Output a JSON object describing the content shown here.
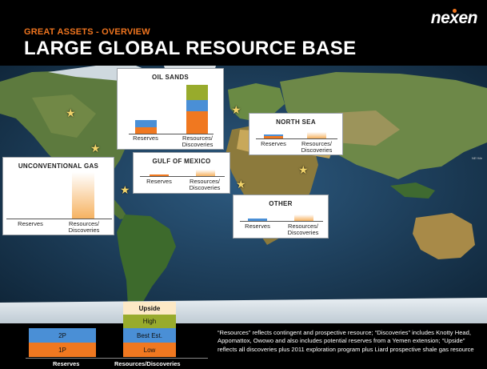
{
  "header": {
    "kicker": "GREAT ASSETS - OVERVIEW",
    "title": "LARGE GLOBAL RESOURCE BASE",
    "logo": "nexen"
  },
  "colors": {
    "accent": "#f0751f",
    "1p": "#f07820",
    "2p": "#4a8fd6",
    "high": "#98ab2c",
    "upside": "#fde9c6"
  },
  "regions": {
    "oil_sands": {
      "title": "OIL SANDS",
      "reserves_label": "Reserves",
      "resources_label": "Resources/\nDiscoveries"
    },
    "north_sea": {
      "title": "NORTH SEA",
      "reserves_label": "Reserves",
      "resources_label": "Resources/\nDiscoveries"
    },
    "unconventional_gas": {
      "title": "UNCONVENTIONAL GAS",
      "reserves_label": "Reserves",
      "resources_label": "Resources/\nDiscoveries"
    },
    "gulf_of_mexico": {
      "title": "GULF OF MEXICO",
      "reserves_label": "Reserves",
      "resources_label": "Resources/\nDiscoveries"
    },
    "other": {
      "title": "OTHER",
      "reserves_label": "Reserves",
      "resources_label": "Resources/\nDiscoveries"
    }
  },
  "legend": {
    "reserves_2p": "2P",
    "reserves_1p": "1P",
    "resources_upside": "Upside",
    "resources_high": "High",
    "resources_best": "Best Est.",
    "resources_low": "Low",
    "reserves_label": "Reserves",
    "resources_label": "Resources/Discoveries"
  },
  "footnote": "“Resources” reflects contingent and prospective resource; “Discoveries” includes Knotty Head, Appomattox, Owowo and also includes potential reserves from a Yemen extension; “Upside” reflects all discoveries plus 2011 exploration program plus Liard prospective shale gas resource",
  "watermark": "NE↑Me"
}
